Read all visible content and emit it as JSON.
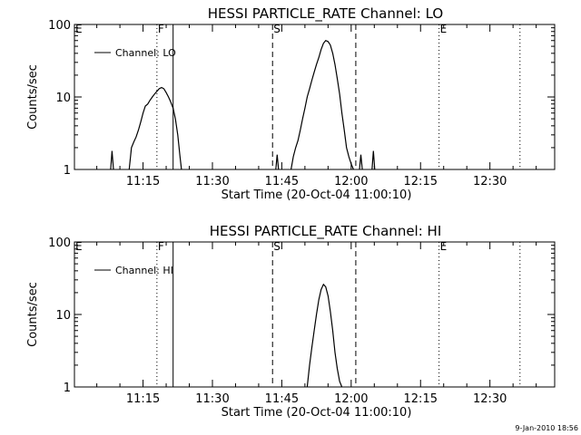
{
  "footer": {
    "timestamp": "9-Jan-2010 18:56"
  },
  "chart_data": [
    {
      "type": "line",
      "title": "HESSI PARTICLE_RATE Channel: LO",
      "xlabel": "Start Time (20-Oct-04 11:00:10)",
      "ylabel": "Counts/sec",
      "y_scale": "log",
      "ylim": [
        1,
        100
      ],
      "y_ticks": [
        "1",
        "10",
        "100"
      ],
      "xlim": [
        "11:00:10",
        "12:44"
      ],
      "x_ticks": [
        "11:15",
        "11:30",
        "11:45",
        "12:00",
        "12:15",
        "12:30"
      ],
      "legend": {
        "position": "top-left",
        "entries": [
          "Channel: LO"
        ]
      },
      "markers": [
        {
          "label": "E",
          "time": "11:00:10",
          "style": "dotted"
        },
        {
          "label": "F",
          "time": "11:18",
          "style": "dotted"
        },
        {
          "label": "",
          "time": "11:21.5",
          "style": "solid"
        },
        {
          "label": "S",
          "time": "11:43",
          "style": "dashed"
        },
        {
          "label": "",
          "time": "12:01",
          "style": "dashed"
        },
        {
          "label": "E",
          "time": "12:19",
          "style": "dotted"
        },
        {
          "label": "",
          "time": "12:36.5",
          "style": "dotted"
        }
      ],
      "series": [
        {
          "name": "Channel: LO",
          "segments": [
            {
              "t": [
                "11:08",
                "11:08.3",
                "11:08.6"
              ],
              "y": [
                1,
                1.8,
                1
              ]
            },
            {
              "t": [
                "11:12",
                "11:12.5",
                "11:13",
                "11:13.5",
                "11:14",
                "11:14.5",
                "11:15",
                "11:15.5",
                "11:16",
                "11:16.5",
                "11:17",
                "11:17.5",
                "11:18",
                "11:18.5",
                "11:19",
                "11:19.5",
                "11:20",
                "11:20.5",
                "11:21",
                "11:21.5",
                "11:22",
                "11:22.5",
                "11:23",
                "11:23.3"
              ],
              "y": [
                1,
                2,
                2.4,
                2.8,
                3.5,
                4.5,
                6,
                7.5,
                8,
                9,
                10,
                11,
                12,
                13,
                13.5,
                13,
                11.5,
                10,
                8.5,
                7,
                5,
                3,
                1.5,
                1
              ]
            },
            {
              "t": [
                "11:43.7",
                "11:44",
                "11:44.3"
              ],
              "y": [
                1,
                1.6,
                1
              ]
            },
            {
              "t": [
                "11:47",
                "11:47.5",
                "11:48",
                "11:48.5",
                "11:49",
                "11:49.5",
                "11:50",
                "11:50.5",
                "11:51",
                "11:51.5",
                "11:52",
                "11:52.5",
                "11:53",
                "11:53.5",
                "11:54",
                "11:54.5",
                "11:55",
                "11:55.5",
                "11:56",
                "11:56.5",
                "11:57",
                "11:57.5",
                "11:58",
                "11:58.5",
                "11:59",
                "11:59.5",
                "12:00",
                "12:00.5"
              ],
              "y": [
                1,
                1.5,
                2,
                2.5,
                3.5,
                5,
                7,
                10,
                13,
                17,
                22,
                28,
                35,
                45,
                55,
                60,
                58,
                52,
                40,
                28,
                18,
                11,
                6,
                3.5,
                2,
                1.5,
                1.2,
                1
              ]
            },
            {
              "t": [
                "12:01.8",
                "12:02.1",
                "12:02.4"
              ],
              "y": [
                1,
                1.6,
                1
              ]
            },
            {
              "t": [
                "12:04.5",
                "12:04.8",
                "12:05.1"
              ],
              "y": [
                1,
                1.8,
                1
              ]
            }
          ]
        }
      ]
    },
    {
      "type": "line",
      "title": "HESSI PARTICLE_RATE Channel: HI",
      "xlabel": "Start Time (20-Oct-04 11:00:10)",
      "ylabel": "Counts/sec",
      "y_scale": "log",
      "ylim": [
        1,
        100
      ],
      "y_ticks": [
        "1",
        "10",
        "100"
      ],
      "xlim": [
        "11:00:10",
        "12:44"
      ],
      "x_ticks": [
        "11:15",
        "11:30",
        "11:45",
        "12:00",
        "12:15",
        "12:30"
      ],
      "legend": {
        "position": "top-left",
        "entries": [
          "Channel: HI"
        ]
      },
      "markers": [
        {
          "label": "E",
          "time": "11:00:10",
          "style": "dotted"
        },
        {
          "label": "F",
          "time": "11:18",
          "style": "dotted"
        },
        {
          "label": "",
          "time": "11:21.5",
          "style": "solid"
        },
        {
          "label": "S",
          "time": "11:43",
          "style": "dashed"
        },
        {
          "label": "",
          "time": "12:01",
          "style": "dashed"
        },
        {
          "label": "E",
          "time": "12:19",
          "style": "dotted"
        },
        {
          "label": "",
          "time": "12:36.5",
          "style": "dotted"
        }
      ],
      "series": [
        {
          "name": "Channel: HI",
          "segments": [
            {
              "t": [
                "11:50.5",
                "11:51",
                "11:51.5",
                "11:52",
                "11:52.5",
                "11:53",
                "11:53.5",
                "11:54",
                "11:54.5",
                "11:55",
                "11:55.5",
                "11:56",
                "11:56.5",
                "11:57",
                "11:57.5",
                "11:58"
              ],
              "y": [
                1,
                2,
                3.5,
                6,
                10,
                16,
                22,
                26,
                24,
                18,
                11,
                6,
                3,
                1.8,
                1.2,
                1
              ]
            }
          ]
        }
      ]
    }
  ]
}
